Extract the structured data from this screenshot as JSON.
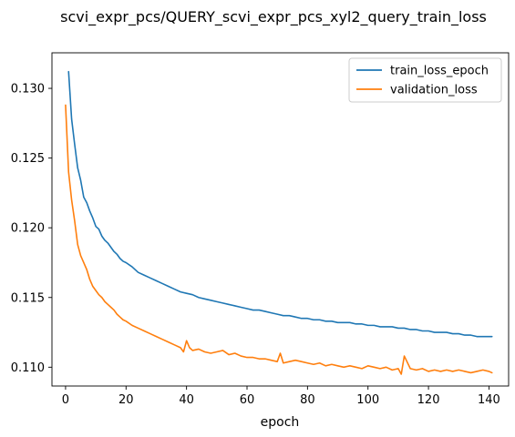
{
  "chart_data": {
    "type": "line",
    "title": "scvi_expr_pcs/QUERY_scvi_expr_pcs_xyl2_query_train_loss",
    "xlabel": "epoch",
    "ylabel": "",
    "xlim": [
      -4.5,
      146.5
    ],
    "ylim": [
      0.10865,
      0.13255
    ],
    "xticks": [
      0,
      20,
      40,
      60,
      80,
      100,
      120,
      140
    ],
    "xtick_labels": [
      "0",
      "20",
      "40",
      "60",
      "80",
      "100",
      "120",
      "140"
    ],
    "yticks": [
      0.11,
      0.115,
      0.12,
      0.125,
      0.13
    ],
    "ytick_labels": [
      "0.110",
      "0.115",
      "0.120",
      "0.125",
      "0.130"
    ],
    "grid": false,
    "legend_position": "top-right",
    "series": [
      {
        "name": "train_loss_epoch",
        "color": "#1f77b4",
        "x": [
          1,
          2,
          3,
          4,
          5,
          6,
          7,
          8,
          9,
          10,
          11,
          12,
          13,
          14,
          15,
          16,
          17,
          18,
          19,
          20,
          22,
          24,
          26,
          28,
          30,
          32,
          34,
          36,
          38,
          40,
          42,
          44,
          46,
          48,
          50,
          52,
          54,
          56,
          58,
          60,
          62,
          64,
          66,
          68,
          70,
          72,
          74,
          76,
          78,
          80,
          82,
          84,
          86,
          88,
          90,
          92,
          94,
          96,
          98,
          100,
          102,
          104,
          106,
          108,
          110,
          112,
          114,
          116,
          118,
          120,
          122,
          124,
          126,
          128,
          130,
          132,
          134,
          136,
          138,
          140,
          141
        ],
        "y": [
          0.1312,
          0.1278,
          0.126,
          0.1243,
          0.1234,
          0.1222,
          0.1218,
          0.1212,
          0.1207,
          0.1201,
          0.1199,
          0.1194,
          0.1191,
          0.1189,
          0.1186,
          0.1183,
          0.1181,
          0.1178,
          0.1176,
          0.1175,
          0.1172,
          0.1168,
          0.1166,
          0.1164,
          0.1162,
          0.116,
          0.1158,
          0.1156,
          0.1154,
          0.1153,
          0.1152,
          0.115,
          0.1149,
          0.1148,
          0.1147,
          0.1146,
          0.1145,
          0.1144,
          0.1143,
          0.1142,
          0.1141,
          0.1141,
          0.114,
          0.1139,
          0.1138,
          0.1137,
          0.1137,
          0.1136,
          0.1135,
          0.1135,
          0.1134,
          0.1134,
          0.1133,
          0.1133,
          0.1132,
          0.1132,
          0.1132,
          0.1131,
          0.1131,
          0.113,
          0.113,
          0.1129,
          0.1129,
          0.1129,
          0.1128,
          0.1128,
          0.1127,
          0.1127,
          0.1126,
          0.1126,
          0.1125,
          0.1125,
          0.1125,
          0.1124,
          0.1124,
          0.1123,
          0.1123,
          0.1122,
          0.1122,
          0.1122,
          0.1122
        ]
      },
      {
        "name": "validation_loss",
        "color": "#ff7f0e",
        "x": [
          0,
          1,
          2,
          3,
          4,
          5,
          6,
          7,
          8,
          9,
          10,
          11,
          12,
          13,
          14,
          15,
          16,
          17,
          18,
          19,
          20,
          22,
          24,
          26,
          28,
          30,
          32,
          34,
          36,
          38,
          39,
          40,
          41,
          42,
          44,
          46,
          48,
          50,
          52,
          54,
          56,
          58,
          60,
          62,
          64,
          66,
          68,
          70,
          71,
          72,
          74,
          76,
          78,
          80,
          82,
          84,
          86,
          88,
          90,
          92,
          94,
          96,
          98,
          100,
          102,
          104,
          106,
          108,
          110,
          111,
          112,
          114,
          116,
          118,
          120,
          122,
          124,
          126,
          128,
          130,
          132,
          134,
          136,
          138,
          140,
          141
        ],
        "y": [
          0.1288,
          0.124,
          0.122,
          0.1205,
          0.1188,
          0.118,
          0.1175,
          0.117,
          0.1163,
          0.1158,
          0.1155,
          0.1152,
          0.115,
          0.1147,
          0.1145,
          0.1143,
          0.1141,
          0.1138,
          0.1136,
          0.1134,
          0.1133,
          0.113,
          0.1128,
          0.1126,
          0.1124,
          0.1122,
          0.112,
          0.1118,
          0.1116,
          0.1114,
          0.1111,
          0.1119,
          0.1114,
          0.1112,
          0.1113,
          0.1111,
          0.111,
          0.1111,
          0.1112,
          0.1109,
          0.111,
          0.1108,
          0.1107,
          0.1107,
          0.1106,
          0.1106,
          0.1105,
          0.1104,
          0.111,
          0.1103,
          0.1104,
          0.1105,
          0.1104,
          0.1103,
          0.1102,
          0.1103,
          0.1101,
          0.1102,
          0.1101,
          0.11,
          0.1101,
          0.11,
          0.1099,
          0.1101,
          0.11,
          0.1099,
          0.11,
          0.1098,
          0.1099,
          0.1095,
          0.1108,
          0.1099,
          0.1098,
          0.1099,
          0.1097,
          0.1098,
          0.1097,
          0.1098,
          0.1097,
          0.1098,
          0.1097,
          0.1096,
          0.1097,
          0.1098,
          0.1097,
          0.1096
        ]
      }
    ]
  }
}
